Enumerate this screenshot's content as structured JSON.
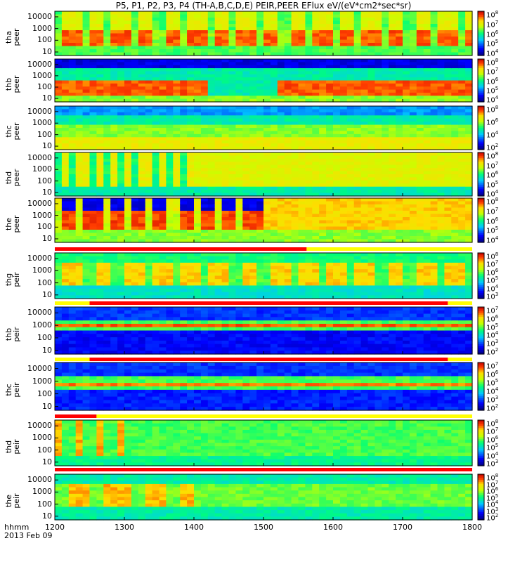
{
  "chart_data": {
    "type": "heatmap",
    "title": "P5, P1, P2, P3, P4 (TH-A,B,C,D,E) PEIR,PEER EFlux eV/(eV*cm2*sec*sr)",
    "title_unit_superscript": "2",
    "x_axis": {
      "label_line1": "hhmm",
      "label_line2": "2013 Feb 09",
      "ticks": [
        "1200",
        "1300",
        "1400",
        "1500",
        "1600",
        "1700",
        "1800"
      ],
      "range": [
        1200,
        1800
      ]
    },
    "panels": [
      {
        "probe": "tha",
        "species": "peer",
        "ylabel": [
          "tha",
          "peer"
        ],
        "y_ticks": [
          "10000",
          "1000",
          "100",
          "10"
        ],
        "y_range": [
          5,
          30000
        ],
        "y_scale": "log",
        "colorbar_ticks": [
          {
            "base": "10",
            "exp": "8"
          },
          {
            "base": "10",
            "exp": "7"
          },
          {
            "base": "10",
            "exp": "6"
          },
          {
            "base": "10",
            "exp": "5"
          },
          {
            "base": "10",
            "exp": "4"
          }
        ]
      },
      {
        "probe": "thb",
        "species": "peer",
        "ylabel": [
          "thb",
          "peer"
        ],
        "y_ticks": [
          "10000",
          "1000",
          "100",
          "10"
        ],
        "y_range": [
          5,
          30000
        ],
        "y_scale": "log",
        "colorbar_ticks": [
          {
            "base": "10",
            "exp": "8"
          },
          {
            "base": "10",
            "exp": "7"
          },
          {
            "base": "10",
            "exp": "6"
          },
          {
            "base": "10",
            "exp": "5"
          },
          {
            "base": "10",
            "exp": "4"
          }
        ]
      },
      {
        "probe": "thc",
        "species": "peer",
        "ylabel": [
          "thc",
          "peer"
        ],
        "y_ticks": [
          "10000",
          "1000",
          "100",
          "10"
        ],
        "y_range": [
          5,
          30000
        ],
        "y_scale": "log",
        "colorbar_ticks": [
          {
            "base": "10",
            "exp": "8"
          },
          {
            "base": "10",
            "exp": "6"
          },
          {
            "base": "10",
            "exp": "4"
          },
          {
            "base": "10",
            "exp": "2"
          }
        ]
      },
      {
        "probe": "thd",
        "species": "peer",
        "ylabel": [
          "thd",
          "peer"
        ],
        "y_ticks": [
          "10000",
          "1000",
          "100",
          "10"
        ],
        "y_range": [
          5,
          30000
        ],
        "y_scale": "log",
        "colorbar_ticks": [
          {
            "base": "10",
            "exp": "8"
          },
          {
            "base": "10",
            "exp": "7"
          },
          {
            "base": "10",
            "exp": "6"
          },
          {
            "base": "10",
            "exp": "5"
          },
          {
            "base": "10",
            "exp": "4"
          }
        ]
      },
      {
        "probe": "the",
        "species": "peer",
        "ylabel": [
          "the",
          "peer"
        ],
        "y_ticks": [
          "10000",
          "1000",
          "100",
          "10"
        ],
        "y_range": [
          5,
          30000
        ],
        "y_scale": "log",
        "colorbar_ticks": [
          {
            "base": "10",
            "exp": "8"
          },
          {
            "base": "10",
            "exp": "7"
          },
          {
            "base": "10",
            "exp": "6"
          },
          {
            "base": "10",
            "exp": "5"
          },
          {
            "base": "10",
            "exp": "4"
          }
        ]
      },
      {
        "probe": "thg",
        "species": "peir",
        "ylabel": [
          "thg",
          "peir"
        ],
        "y_ticks": [
          "10000",
          "1000",
          "100",
          "10"
        ],
        "y_range": [
          5,
          30000
        ],
        "y_scale": "log",
        "colorbar_ticks": [
          {
            "base": "10",
            "exp": "8"
          },
          {
            "base": "10",
            "exp": "7"
          },
          {
            "base": "10",
            "exp": "6"
          },
          {
            "base": "10",
            "exp": "5"
          },
          {
            "base": "10",
            "exp": "4"
          },
          {
            "base": "10",
            "exp": "3"
          }
        ]
      },
      {
        "probe": "thb",
        "species": "peir",
        "ylabel": [
          "thb",
          "peir"
        ],
        "y_ticks": [
          "10000",
          "1000",
          "100",
          "10"
        ],
        "y_range": [
          5,
          30000
        ],
        "y_scale": "log",
        "colorbar_ticks": [
          {
            "base": "10",
            "exp": "7"
          },
          {
            "base": "10",
            "exp": "6"
          },
          {
            "base": "10",
            "exp": "5"
          },
          {
            "base": "10",
            "exp": "4"
          },
          {
            "base": "10",
            "exp": "3"
          },
          {
            "base": "10",
            "exp": "2"
          }
        ]
      },
      {
        "probe": "thc",
        "species": "peir",
        "ylabel": [
          "thc",
          "peir"
        ],
        "y_ticks": [
          "10000",
          "1000",
          "100",
          "10"
        ],
        "y_range": [
          5,
          30000
        ],
        "y_scale": "log",
        "colorbar_ticks": [
          {
            "base": "10",
            "exp": "7"
          },
          {
            "base": "10",
            "exp": "6"
          },
          {
            "base": "10",
            "exp": "5"
          },
          {
            "base": "10",
            "exp": "4"
          },
          {
            "base": "10",
            "exp": "3"
          },
          {
            "base": "10",
            "exp": "2"
          }
        ]
      },
      {
        "probe": "thd",
        "species": "peir",
        "ylabel": [
          "thd",
          "peir"
        ],
        "y_ticks": [
          "10000",
          "1000",
          "100",
          "10"
        ],
        "y_range": [
          5,
          30000
        ],
        "y_scale": "log",
        "colorbar_ticks": [
          {
            "base": "10",
            "exp": "8"
          },
          {
            "base": "10",
            "exp": "7"
          },
          {
            "base": "10",
            "exp": "6"
          },
          {
            "base": "10",
            "exp": "5"
          },
          {
            "base": "10",
            "exp": "4"
          },
          {
            "base": "10",
            "exp": "3"
          }
        ]
      },
      {
        "probe": "the",
        "species": "peir",
        "ylabel": [
          "the",
          "peir"
        ],
        "y_ticks": [
          "10000",
          "1000",
          "100",
          "10"
        ],
        "y_range": [
          5,
          30000
        ],
        "y_scale": "log",
        "colorbar_ticks": [
          {
            "base": "10",
            "exp": "8"
          },
          {
            "base": "10",
            "exp": "7"
          },
          {
            "base": "10",
            "exp": "6"
          },
          {
            "base": "10",
            "exp": "5"
          },
          {
            "base": "10",
            "exp": "4"
          },
          {
            "base": "10",
            "exp": "3"
          },
          {
            "base": "10",
            "exp": "2"
          }
        ]
      }
    ],
    "mode_bars": [
      {
        "after_panel": 5,
        "segments": [
          {
            "color": "#ff0000",
            "from": 1190,
            "to": 1562
          },
          {
            "color": "#ffff00",
            "from": 1562,
            "to": 1800
          }
        ]
      },
      {
        "after_panel": 6,
        "segments": [
          {
            "color": "#ffff00",
            "from": 1190,
            "to": 1250
          },
          {
            "color": "#ff0000",
            "from": 1250,
            "to": 1765
          },
          {
            "color": "#ffff00",
            "from": 1765,
            "to": 1800
          }
        ]
      },
      {
        "after_panel": 7,
        "segments": [
          {
            "color": "#ffff00",
            "from": 1190,
            "to": 1250
          },
          {
            "color": "#ff0000",
            "from": 1250,
            "to": 1765
          },
          {
            "color": "#ffff00",
            "from": 1765,
            "to": 1800
          }
        ]
      },
      {
        "after_panel": 8,
        "segments": [
          {
            "color": "#ff0000",
            "from": 1190,
            "to": 1260
          },
          {
            "color": "#ffff00",
            "from": 1260,
            "to": 1800
          }
        ]
      },
      {
        "after_panel": 9,
        "segments": [
          {
            "color": "#ff0000",
            "from": 1190,
            "to": 1800
          }
        ]
      }
    ]
  }
}
